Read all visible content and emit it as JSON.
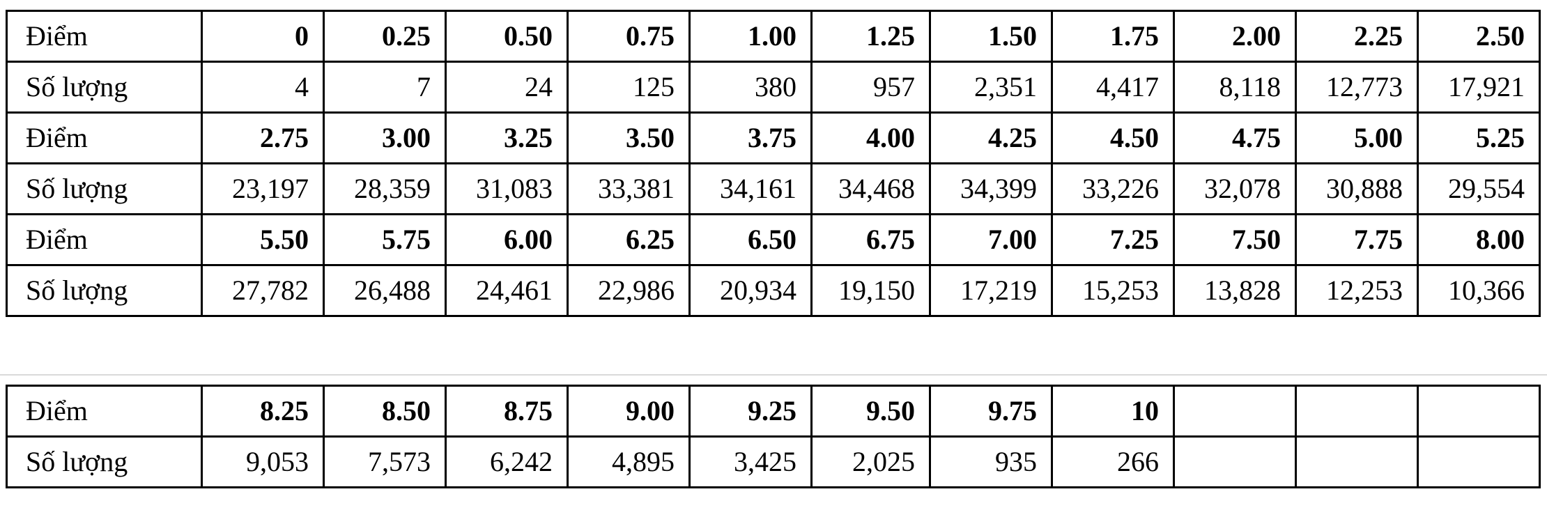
{
  "table1": {
    "rows": [
      {
        "kind": "points",
        "label": "Điểm",
        "values": [
          "0",
          "0.25",
          "0.50",
          "0.75",
          "1.00",
          "1.25",
          "1.50",
          "1.75",
          "2.00",
          "2.25",
          "2.50"
        ]
      },
      {
        "kind": "count",
        "label": "Số lượng",
        "values": [
          "4",
          "7",
          "24",
          "125",
          "380",
          "957",
          "2,351",
          "4,417",
          "8,118",
          "12,773",
          "17,921"
        ]
      },
      {
        "kind": "points",
        "label": "Điểm",
        "values": [
          "2.75",
          "3.00",
          "3.25",
          "3.50",
          "3.75",
          "4.00",
          "4.25",
          "4.50",
          "4.75",
          "5.00",
          "5.25"
        ]
      },
      {
        "kind": "count",
        "label": "Số lượng",
        "values": [
          "23,197",
          "28,359",
          "31,083",
          "33,381",
          "34,161",
          "34,468",
          "34,399",
          "33,226",
          "32,078",
          "30,888",
          "29,554"
        ]
      },
      {
        "kind": "points",
        "label": "Điểm",
        "values": [
          "5.50",
          "5.75",
          "6.00",
          "6.25",
          "6.50",
          "6.75",
          "7.00",
          "7.25",
          "7.50",
          "7.75",
          "8.00"
        ]
      },
      {
        "kind": "count",
        "label": "Số lượng",
        "values": [
          "27,782",
          "26,488",
          "24,461",
          "22,986",
          "20,934",
          "19,150",
          "17,219",
          "15,253",
          "13,828",
          "12,253",
          "10,366"
        ]
      }
    ]
  },
  "table2": {
    "rows": [
      {
        "kind": "points",
        "label": "Điểm",
        "values": [
          "8.25",
          "8.50",
          "8.75",
          "9.00",
          "9.25",
          "9.50",
          "9.75",
          "10",
          "",
          "",
          ""
        ]
      },
      {
        "kind": "count",
        "label": "Số lượng",
        "values": [
          "9,053",
          "7,573",
          "6,242",
          "4,895",
          "3,425",
          "2,025",
          "935",
          "266",
          "",
          "",
          ""
        ]
      }
    ]
  }
}
